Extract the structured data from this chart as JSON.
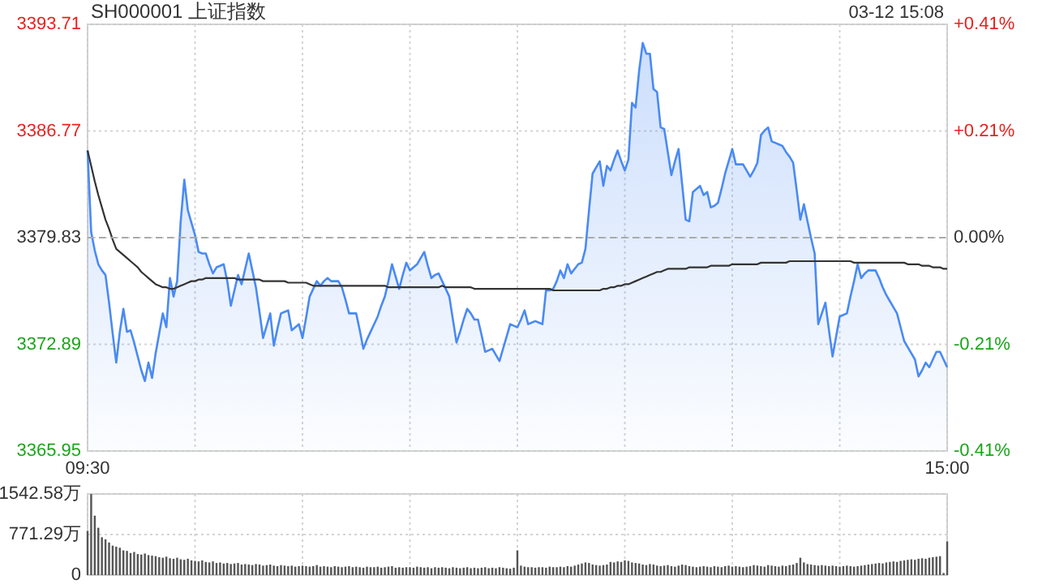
{
  "chart_data": [
    {
      "type": "area",
      "title": "SH000001 上证指数",
      "annotations": [
        "03-12 15:08"
      ],
      "categories": [
        "09:30",
        null,
        null,
        null,
        null,
        null,
        null,
        null,
        null,
        null,
        null,
        null,
        null,
        null,
        null,
        null,
        null,
        null,
        null,
        null,
        null,
        null,
        null,
        null,
        null,
        null,
        null,
        null,
        null,
        null,
        null,
        null,
        null,
        null,
        null,
        null,
        null,
        null,
        null,
        null,
        null,
        null,
        null,
        null,
        null,
        null,
        null,
        null,
        null,
        null,
        null,
        null,
        null,
        null,
        null,
        null,
        null,
        null,
        null,
        null,
        null,
        null,
        null,
        null,
        null,
        null,
        null,
        null,
        null,
        null,
        null,
        null,
        null,
        null,
        null,
        null,
        null,
        null,
        null,
        null,
        null,
        null,
        null,
        null,
        null,
        null,
        null,
        null,
        null,
        null,
        null,
        null,
        null,
        null,
        null,
        null,
        null,
        null,
        null,
        null,
        null,
        null,
        null,
        null,
        null,
        null,
        null,
        null,
        null,
        null,
        null,
        null,
        null,
        null,
        null,
        null,
        null,
        null,
        null,
        null,
        null,
        null,
        null,
        null,
        null,
        null,
        null,
        null,
        null,
        null,
        null,
        null,
        null,
        null,
        null,
        null,
        null,
        null,
        null,
        null,
        null,
        null,
        null,
        null,
        null,
        null,
        null,
        null,
        null,
        null,
        null,
        null,
        null,
        null,
        null,
        null,
        null,
        null,
        null,
        null,
        null,
        null,
        null,
        null,
        null,
        null,
        null,
        null,
        null,
        null,
        null,
        null,
        null,
        null,
        null,
        null,
        null,
        null,
        null,
        null,
        null,
        null,
        null,
        null,
        null,
        null,
        null,
        null,
        null,
        null,
        null,
        null,
        null,
        null,
        null,
        null,
        null,
        null,
        null,
        null,
        null,
        null,
        null,
        null,
        null,
        null,
        null,
        null,
        null,
        null,
        null,
        null,
        null,
        null,
        null,
        null,
        null,
        null,
        null,
        null,
        null,
        null,
        null,
        null,
        null,
        null,
        null,
        null,
        null,
        null,
        null,
        null,
        null,
        null,
        null,
        null,
        null,
        null,
        null,
        null,
        "15:00"
      ],
      "ylim": [
        3365.95,
        3393.71
      ],
      "yticks": [
        3365.95,
        3372.89,
        3379.83,
        3386.77,
        3393.71
      ],
      "y2lim": [
        -0.41,
        0.41
      ],
      "y2ticks": [
        {
          "value": -0.41,
          "label": "-0.41%"
        },
        {
          "value": -0.205,
          "label": "-0.21%"
        },
        {
          "value": 0,
          "label": "0.00%"
        },
        {
          "value": 0.205,
          "label": "+0.21%"
        },
        {
          "value": 0.41,
          "label": "+0.41%"
        }
      ],
      "grid": true,
      "ref_lines": [
        {
          "axis": "y",
          "value": 3379.83,
          "color": "#aaaaaa",
          "line_style": "dashed"
        }
      ],
      "series": [
        {
          "color": "#4a8af4",
          "values": [
            3385.5,
            3380.2,
            3379.0,
            3378.1,
            3377.7,
            3377.4,
            3375.6,
            3373.6,
            3371.7,
            3373.7,
            3375.2,
            3373.7,
            3373.8,
            3373.0,
            3372.1,
            3371.2,
            3370.5,
            3371.7,
            3370.7,
            3372.3,
            3373.6,
            3374.9,
            3374.0,
            3377.2,
            3376.0,
            3377.0,
            3380.9,
            3383.6,
            3381.6,
            3380.8,
            3380.0,
            3378.9,
            3378.8,
            3378.8,
            3378.1,
            3377.5,
            3377.9,
            3378.0,
            3378.1,
            3377.0,
            3375.4,
            3376.4,
            3377.4,
            3376.8,
            3377.8,
            3378.8,
            3377.7,
            3376.6,
            3375.0,
            3373.3,
            3374.1,
            3374.9,
            3372.8,
            3373.9,
            3374.9,
            3375.0,
            3375.1,
            3373.8,
            3374.0,
            3374.2,
            3373.3,
            3374.6,
            3376.0,
            3376.5,
            3377.0,
            3376.7,
            3377.0,
            3377.2,
            3377.0,
            3377.0,
            3377.0,
            3376.6,
            3375.8,
            3374.9,
            3374.9,
            3374.9,
            3373.8,
            3372.6,
            3373.2,
            3373.7,
            3374.2,
            3374.7,
            3375.4,
            3376.0,
            3377.0,
            3378.1,
            3377.3,
            3376.5,
            3377.4,
            3378.2,
            3377.7,
            3377.9,
            3378.1,
            3378.5,
            3378.9,
            3378.0,
            3377.2,
            3377.4,
            3377.5,
            3377.0,
            3376.5,
            3376.0,
            3374.5,
            3373.0,
            3373.7,
            3374.5,
            3375.2,
            3374.9,
            3374.5,
            3374.5,
            3373.5,
            3372.4,
            3372.5,
            3372.6,
            3372.2,
            3371.8,
            3372.6,
            3373.4,
            3374.2,
            3374.1,
            3374.0,
            3374.5,
            3375.1,
            3374.2,
            3374.3,
            3374.4,
            3374.3,
            3374.2,
            3376.4,
            3376.4,
            3376.5,
            3377.0,
            3377.7,
            3377.2,
            3378.1,
            3377.5,
            3377.8,
            3378.1,
            3378.2,
            3379.1,
            3381.6,
            3384.0,
            3384.4,
            3384.8,
            3383.2,
            3384.5,
            3384.2,
            3384.9,
            3385.5,
            3384.8,
            3384.2,
            3384.9,
            3388.6,
            3388.3,
            3390.7,
            3392.5,
            3391.8,
            3391.8,
            3389.5,
            3389.3,
            3387.0,
            3386.9,
            3385.4,
            3383.9,
            3384.8,
            3385.6,
            3383.3,
            3381.0,
            3380.9,
            3382.8,
            3383.0,
            3383.2,
            3382.6,
            3382.8,
            3381.8,
            3381.9,
            3382.1,
            3383.0,
            3384.0,
            3384.8,
            3385.6,
            3384.6,
            3384.6,
            3384.6,
            3384.2,
            3383.8,
            3384.2,
            3384.7,
            3386.5,
            3386.8,
            3387.0,
            3386.1,
            3386.0,
            3385.9,
            3385.8,
            3385.4,
            3385.1,
            3384.7,
            3382.9,
            3381.0,
            3382.0,
            3380.9,
            3379.8,
            3378.8,
            3374.2,
            3374.9,
            3375.6,
            3373.8,
            3372.1,
            3373.4,
            3374.7,
            3374.8,
            3374.9,
            3376.0,
            3377.0,
            3378.1,
            3377.2,
            3377.5,
            3377.7,
            3377.7,
            3377.7,
            3377.2,
            3376.6,
            3376.1,
            3375.7,
            3375.3,
            3374.9,
            3374.0,
            3373.1,
            3372.7,
            3372.3,
            3371.9,
            3370.8,
            3371.2,
            3371.7,
            3371.4,
            3371.9,
            3372.4,
            3372.4,
            3371.9,
            3371.4
          ]
        },
        {
          "type": "line",
          "color": "#333333",
          "values": [
            3385.5,
            3384.5,
            3383.5,
            3382.6,
            3381.8,
            3381.0,
            3380.4,
            3379.7,
            3379.1,
            3378.9,
            3378.7,
            3378.5,
            3378.3,
            3378.1,
            3377.9,
            3377.6,
            3377.4,
            3377.2,
            3377.0,
            3376.8,
            3376.7,
            3376.6,
            3376.6,
            3376.5,
            3376.5,
            3376.6,
            3376.7,
            3376.8,
            3376.9,
            3377.0,
            3377.0,
            3377.1,
            3377.1,
            3377.2,
            3377.2,
            3377.2,
            3377.2,
            3377.2,
            3377.2,
            3377.2,
            3377.2,
            3377.2,
            3377.1,
            3377.1,
            3377.1,
            3377.1,
            3377.1,
            3377.1,
            3377.1,
            3377.0,
            3377.0,
            3377.0,
            3377.0,
            3377.0,
            3377.0,
            3377.0,
            3376.9,
            3376.9,
            3376.9,
            3376.9,
            3376.9,
            3376.9,
            3376.8,
            3376.7,
            3376.7,
            3376.7,
            3376.7,
            3376.7,
            3376.7,
            3376.7,
            3376.7,
            3376.7,
            3376.7,
            3376.7,
            3376.7,
            3376.7,
            3376.7,
            3376.7,
            3376.7,
            3376.7,
            3376.7,
            3376.7,
            3376.7,
            3376.7,
            3376.6,
            3376.6,
            3376.6,
            3376.6,
            3376.6,
            3376.6,
            3376.6,
            3376.6,
            3376.6,
            3376.6,
            3376.6,
            3376.6,
            3376.6,
            3376.6,
            3376.6,
            3376.7,
            3376.6,
            3376.6,
            3376.6,
            3376.6,
            3376.6,
            3376.6,
            3376.6,
            3376.6,
            3376.5,
            3376.5,
            3376.5,
            3376.5,
            3376.5,
            3376.5,
            3376.5,
            3376.5,
            3376.5,
            3376.5,
            3376.5,
            3376.5,
            3376.5,
            3376.5,
            3376.5,
            3376.5,
            3376.5,
            3376.5,
            3376.5,
            3376.5,
            3376.5,
            3376.5,
            3376.4,
            3376.4,
            3376.4,
            3376.4,
            3376.4,
            3376.4,
            3376.4,
            3376.4,
            3376.4,
            3376.4,
            3376.4,
            3376.4,
            3376.4,
            3376.4,
            3376.5,
            3376.5,
            3376.6,
            3376.6,
            3376.7,
            3376.7,
            3376.8,
            3376.8,
            3376.9,
            3377.0,
            3377.1,
            3377.2,
            3377.3,
            3377.4,
            3377.5,
            3377.6,
            3377.6,
            3377.7,
            3377.8,
            3377.8,
            3377.8,
            3377.8,
            3377.8,
            3377.8,
            3377.9,
            3377.9,
            3377.9,
            3377.9,
            3377.9,
            3377.9,
            3378.0,
            3378.0,
            3378.0,
            3378.0,
            3378.0,
            3378.0,
            3378.1,
            3378.1,
            3378.1,
            3378.1,
            3378.1,
            3378.1,
            3378.1,
            3378.1,
            3378.2,
            3378.2,
            3378.2,
            3378.2,
            3378.2,
            3378.2,
            3378.2,
            3378.2,
            3378.3,
            3378.3,
            3378.3,
            3378.3,
            3378.3,
            3378.3,
            3378.3,
            3378.3,
            3378.3,
            3378.3,
            3378.3,
            3378.3,
            3378.3,
            3378.3,
            3378.3,
            3378.3,
            3378.3,
            3378.3,
            3378.2,
            3378.2,
            3378.2,
            3378.2,
            3378.2,
            3378.2,
            3378.2,
            3378.2,
            3378.2,
            3378.2,
            3378.2,
            3378.2,
            3378.2,
            3378.2,
            3378.2,
            3378.1,
            3378.1,
            3378.1,
            3378.1,
            3378.0,
            3378.0,
            3378.0,
            3377.9,
            3377.9,
            3377.9,
            3377.8,
            3377.8
          ]
        }
      ]
    },
    {
      "type": "bar",
      "color": "#555555",
      "tick_labels": "y",
      "grid": true,
      "categories": [
        null,
        null,
        null,
        null,
        null,
        null,
        null,
        null,
        null,
        null,
        null,
        null,
        null,
        null,
        null,
        null,
        null,
        null,
        null,
        null,
        null,
        null,
        null,
        null,
        null,
        null,
        null,
        null,
        null,
        null,
        null,
        null,
        null,
        null,
        null,
        null,
        null,
        null,
        null,
        null,
        null,
        null,
        null,
        null,
        null,
        null,
        null,
        null,
        null,
        null,
        null,
        null,
        null,
        null,
        null,
        null,
        null,
        null,
        null,
        null,
        null,
        null,
        null,
        null,
        null,
        null,
        null,
        null,
        null,
        null,
        null,
        null,
        null,
        null,
        null,
        null,
        null,
        null,
        null,
        null,
        null,
        null,
        null,
        null,
        null,
        null,
        null,
        null,
        null,
        null,
        null,
        null,
        null,
        null,
        null,
        null,
        null,
        null,
        null,
        null,
        null,
        null,
        null,
        null,
        null,
        null,
        null,
        null,
        null,
        null,
        null,
        null,
        null,
        null,
        null,
        null,
        null,
        null,
        null,
        null,
        null,
        null,
        null,
        null,
        null,
        null,
        null,
        null,
        null,
        null,
        null,
        null,
        null,
        null,
        null,
        null,
        null,
        null,
        null,
        null,
        null,
        null,
        null,
        null,
        null,
        null,
        null,
        null,
        null,
        null,
        null,
        null,
        null,
        null,
        null,
        null,
        null,
        null,
        null,
        null,
        null,
        null,
        null,
        null,
        null,
        null,
        null,
        null,
        null,
        null,
        null,
        null,
        null,
        null,
        null,
        null,
        null,
        null,
        null,
        null,
        null,
        null,
        null,
        null,
        null,
        null,
        null,
        null,
        null,
        null,
        null,
        null,
        null,
        null,
        null,
        null,
        null,
        null,
        null,
        null,
        null,
        null,
        null,
        null,
        null,
        null,
        null,
        null,
        null,
        null,
        null,
        null,
        null,
        null,
        null,
        null,
        null,
        null,
        null,
        null,
        null,
        null,
        null,
        null,
        null,
        null,
        null,
        null,
        null,
        null,
        null,
        null,
        null,
        null,
        null,
        null,
        null,
        null,
        null,
        null,
        null
      ],
      "ylim": [
        0,
        1542.58
      ],
      "yticks": [
        0,
        {
          "value": 771.29,
          "label": "771.29万"
        },
        {
          "value": 1542.58,
          "label": "1542.58万"
        }
      ],
      "values": [
        840,
        1540,
        1130,
        900,
        720,
        680,
        620,
        560,
        540,
        520,
        470,
        460,
        420,
        440,
        400,
        390,
        410,
        380,
        370,
        360,
        340,
        330,
        350,
        320,
        310,
        330,
        300,
        290,
        310,
        280,
        270,
        260,
        280,
        250,
        240,
        260,
        230,
        240,
        220,
        230,
        210,
        220,
        230,
        200,
        210,
        200,
        190,
        210,
        200,
        180,
        190,
        200,
        180,
        170,
        190,
        180,
        170,
        180,
        160,
        170,
        180,
        170,
        160,
        170,
        190,
        160,
        170,
        160,
        150,
        170,
        160,
        150,
        160,
        170,
        150,
        160,
        150,
        140,
        160,
        150,
        150,
        160,
        140,
        150,
        160,
        170,
        140,
        150,
        140,
        150,
        150,
        140,
        160,
        150,
        140,
        150,
        130,
        150,
        140,
        150,
        140,
        130,
        150,
        140,
        130,
        140,
        150,
        130,
        140,
        130,
        140,
        150,
        130,
        140,
        130,
        150,
        140,
        130,
        120,
        140,
        470,
        180,
        160,
        150,
        150,
        140,
        150,
        150,
        140,
        160,
        150,
        150,
        160,
        150,
        170,
        160,
        180,
        200,
        220,
        240,
        230,
        200,
        190,
        180,
        190,
        200,
        250,
        240,
        260,
        250,
        280,
        270,
        240,
        230,
        220,
        200,
        190,
        210,
        200,
        180,
        170,
        180,
        190,
        170,
        160,
        180,
        200,
        190,
        170,
        160,
        150,
        160,
        170,
        160,
        150,
        170,
        160,
        150,
        170,
        180,
        160,
        170,
        160,
        150,
        160,
        170,
        190,
        180,
        170,
        160,
        190,
        180,
        170,
        160,
        180,
        170,
        190,
        200,
        230,
        330,
        240,
        210,
        200,
        190,
        180,
        190,
        180,
        170,
        180,
        170,
        160,
        170,
        180,
        170,
        160,
        170,
        180,
        190,
        200,
        210,
        220,
        230,
        220,
        240,
        250,
        260,
        250,
        270,
        280,
        290,
        300,
        290,
        310,
        320,
        310,
        330,
        340,
        350,
        360,
        40,
        640
      ]
    }
  ]
}
